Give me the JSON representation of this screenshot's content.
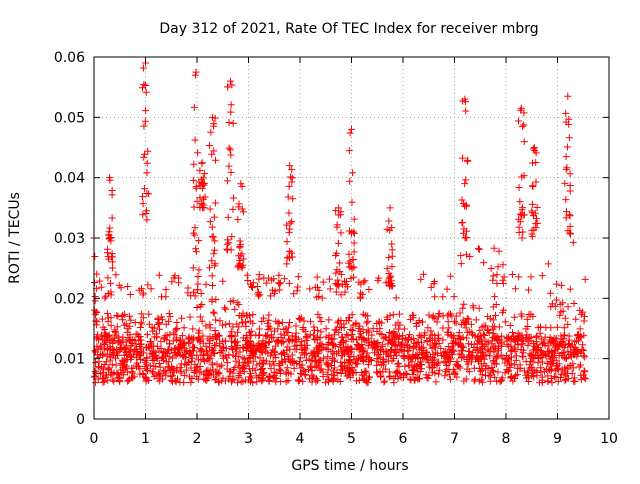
{
  "chart_data": {
    "type": "scatter",
    "title": "Day 312 of 2021, Rate Of TEC Index for receiver mbrg",
    "xlabel": "GPS time / hours",
    "ylabel": "ROTI / TECUs",
    "xlim": [
      0,
      10
    ],
    "ylim": [
      0,
      0.06
    ],
    "x_ticks": [
      "0",
      "1",
      "2",
      "3",
      "4",
      "5",
      "6",
      "7",
      "8",
      "9",
      "10"
    ],
    "y_ticks": [
      "0",
      "0.01",
      "0.02",
      "0.03",
      "0.04",
      "0.05",
      "0.06"
    ],
    "grid": true,
    "marker": "+",
    "color": "#ff0000",
    "time_range_hours": [
      0,
      9.55
    ],
    "baseline": {
      "min": 0.004,
      "typical": 0.01,
      "upper": 0.02
    },
    "enhanced_intervals_hours": [
      [
        1.9,
        2.9
      ],
      [
        7.1,
        8.1
      ],
      [
        8.7,
        9.5
      ]
    ],
    "bursts": [
      {
        "x": 0.0,
        "y_min": 0.015,
        "y_max": 0.03
      },
      {
        "x": 0.3,
        "y_min": 0.025,
        "y_max": 0.04
      },
      {
        "x": 1.0,
        "y_min": 0.033,
        "y_max": 0.059
      },
      {
        "x": 1.98,
        "y_min": 0.02,
        "y_max": 0.0575
      },
      {
        "x": 2.1,
        "y_min": 0.035,
        "y_max": 0.0425
      },
      {
        "x": 2.3,
        "y_min": 0.025,
        "y_max": 0.05
      },
      {
        "x": 2.65,
        "y_min": 0.028,
        "y_max": 0.056
      },
      {
        "x": 2.85,
        "y_min": 0.025,
        "y_max": 0.039
      },
      {
        "x": 3.8,
        "y_min": 0.025,
        "y_max": 0.042
      },
      {
        "x": 4.75,
        "y_min": 0.022,
        "y_max": 0.035
      },
      {
        "x": 5.0,
        "y_min": 0.025,
        "y_max": 0.048
      },
      {
        "x": 5.75,
        "y_min": 0.022,
        "y_max": 0.035
      },
      {
        "x": 7.2,
        "y_min": 0.03,
        "y_max": 0.053
      },
      {
        "x": 8.3,
        "y_min": 0.03,
        "y_max": 0.0515
      },
      {
        "x": 8.55,
        "y_min": 0.03,
        "y_max": 0.045
      },
      {
        "x": 9.2,
        "y_min": 0.03,
        "y_max": 0.0535
      }
    ]
  }
}
